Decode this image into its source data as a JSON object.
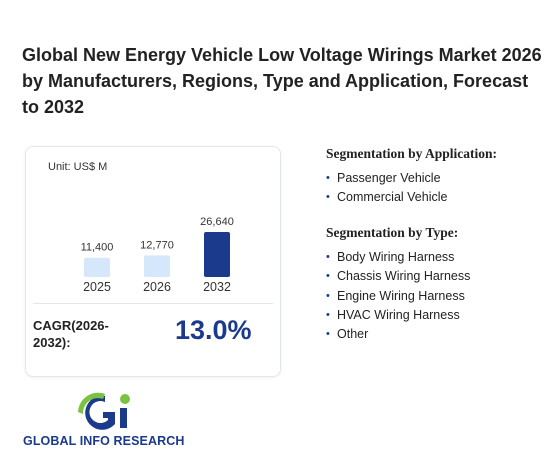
{
  "title": "Global New Energy Vehicle Low Voltage Wirings Market 2026 by Manufacturers, Regions, Type and Application, Forecast to 2032",
  "chart_data": {
    "type": "bar",
    "unit": "Unit: US$ M",
    "categories": [
      "2025",
      "2026",
      "2032"
    ],
    "values": [
      11400,
      12770,
      26640
    ],
    "value_labels": [
      "11,400",
      "12,770",
      "26,640"
    ],
    "colors": [
      "#d5e7fa",
      "#d5e7fa",
      "#1b3a8c"
    ]
  },
  "cagr": {
    "label": "CAGR(2026-2032):",
    "value": "13.0%"
  },
  "segmentation_application": {
    "title": "Segmentation by Application:",
    "items": [
      "Passenger Vehicle",
      "Commercial Vehicle"
    ]
  },
  "segmentation_type": {
    "title": "Segmentation by Type:",
    "items": [
      "Body Wiring Harness",
      "Chassis Wiring Harness",
      "Engine Wiring Harness",
      "HVAC Wiring Harness",
      "Other"
    ]
  },
  "logo": {
    "text": "GLOBAL INFO RESEARCH"
  }
}
